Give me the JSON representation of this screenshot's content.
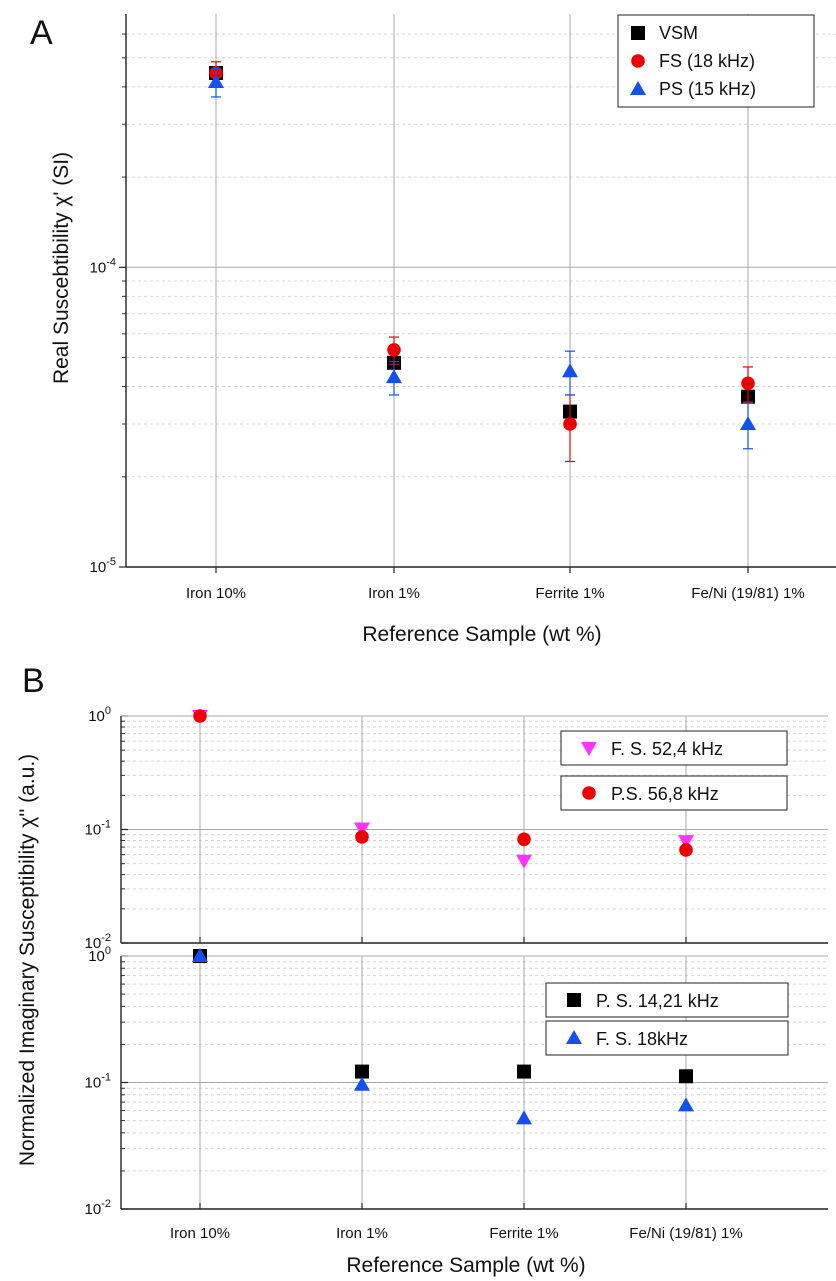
{
  "figure": {
    "panel_a_label": "A",
    "panel_b_label": "B",
    "ylabel_b": "Normalized  Imaginary Susceptibility χ'' (a.u.)"
  },
  "colors": {
    "VSM": "#000000",
    "FS (18 kHz)": "#ee0000",
    "PS (15 kHz)": "#1450f0",
    "F. S. 52,4 kHz": "#ff33ff",
    "P.S. 56,8 kHz": "#ee0000",
    "P. S. 14,21 kHz": "#000000",
    "F. S. 18kHz": "#1450f0"
  },
  "chart_data": [
    {
      "type": "scatter",
      "panel": "A",
      "categories": [
        "Iron 10%",
        "Iron 1%",
        "Ferrite 1%",
        "Fe/Ni (19/81) 1%"
      ],
      "xlabel": "Reference Sample (wt %)",
      "ylabel": "Real Suscebtibility χ' (SI)",
      "yscale": "log",
      "ylim": [
        1e-05,
        0.0007
      ],
      "yticks": [
        {
          "value": 1e-05,
          "base": "10",
          "exp": "-5"
        },
        {
          "value": 0.0001,
          "base": "10",
          "exp": "-4"
        }
      ],
      "grid": true,
      "legend_position": "top-right",
      "series": [
        {
          "name": "VSM",
          "marker": "square",
          "values": [
            0.000445,
            4.8e-05,
            3.3e-05,
            3.7e-05
          ],
          "err": [
            0,
            0,
            0,
            0
          ]
        },
        {
          "name": "FS (18 kHz)",
          "marker": "circle",
          "values": [
            0.000445,
            5.3e-05,
            3e-05,
            4.1e-05
          ],
          "err": [
            4e-05,
            5.5e-06,
            7.5e-06,
            5.5e-06
          ]
        },
        {
          "name": "PS (15 kHz)",
          "marker": "triangle-up",
          "values": [
            0.000415,
            4.3e-05,
            4.5e-05,
            3e-05
          ],
          "err": [
            4.5e-05,
            5.5e-06,
            7.5e-06,
            5.2e-06
          ]
        }
      ]
    },
    {
      "type": "scatter",
      "panel": "B-top",
      "categories": [
        "Iron 10%",
        "Iron 1%",
        "Ferrite 1%",
        "Fe/Ni (19/81) 1%"
      ],
      "yscale": "log",
      "ylim": [
        0.01,
        1.0
      ],
      "yticks": [
        {
          "value": 1,
          "base": "10",
          "exp": "0"
        },
        {
          "value": 0.1,
          "base": "10",
          "exp": "-1"
        },
        {
          "value": 0.01,
          "base": "10",
          "exp": "-2"
        }
      ],
      "grid": true,
      "legend_position": "right",
      "series": [
        {
          "name": "F. S. 52,4 kHz",
          "marker": "triangle-down",
          "values": [
            1.0,
            0.102,
            0.053,
            0.079
          ]
        },
        {
          "name": "P.S. 56,8 kHz",
          "marker": "circle",
          "values": [
            1.0,
            0.086,
            0.082,
            0.066
          ]
        }
      ]
    },
    {
      "type": "scatter",
      "panel": "B-bottom",
      "categories": [
        "Iron 10%",
        "Iron 1%",
        "Ferrite 1%",
        "Fe/Ni (19/81) 1%"
      ],
      "xlabel": "Reference Sample (wt %)",
      "yscale": "log",
      "ylim": [
        0.01,
        1.0
      ],
      "yticks": [
        {
          "value": 1,
          "base": "10",
          "exp": "0"
        },
        {
          "value": 0.1,
          "base": "10",
          "exp": "-1"
        },
        {
          "value": 0.01,
          "base": "10",
          "exp": "-2"
        }
      ],
      "grid": true,
      "legend_position": "top-right",
      "series": [
        {
          "name": "P. S. 14,21 kHz",
          "marker": "square",
          "values": [
            1.0,
            0.122,
            0.122,
            0.112
          ]
        },
        {
          "name": "F. S. 18kHz",
          "marker": "triangle-up",
          "values": [
            1.0,
            0.096,
            0.052,
            0.066
          ]
        }
      ]
    }
  ]
}
